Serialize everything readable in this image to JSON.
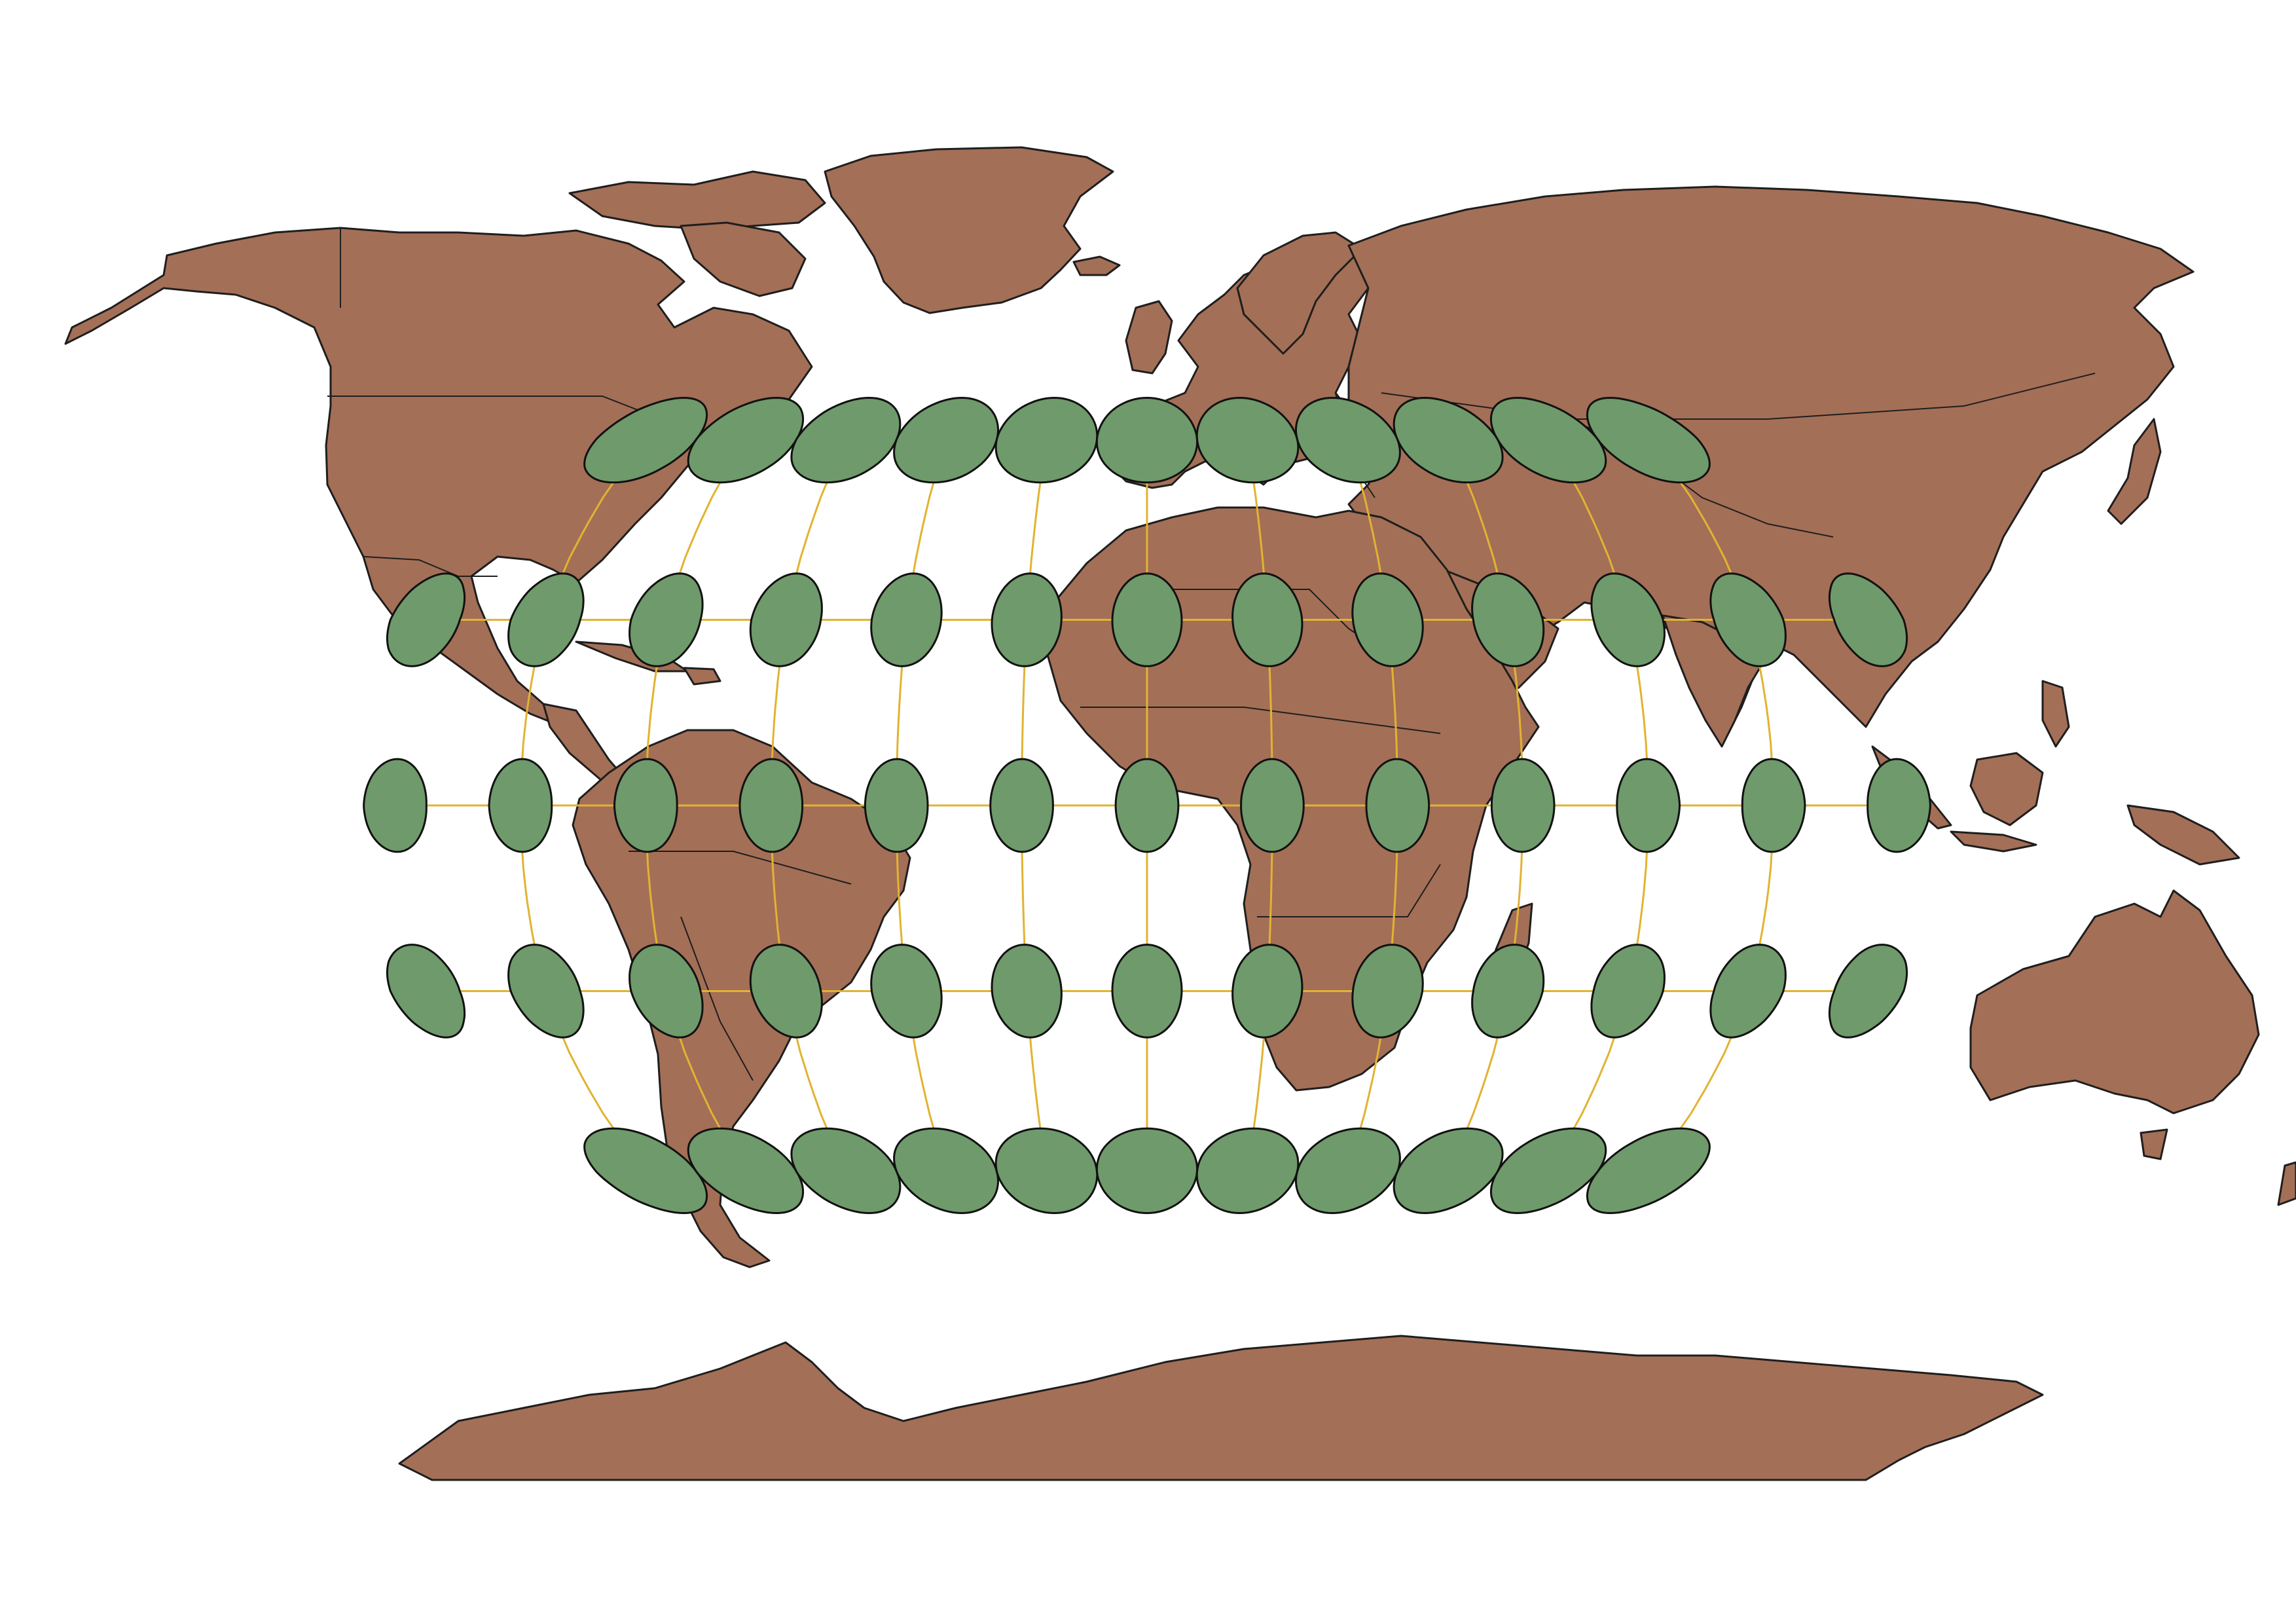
{
  "map": {
    "projection": "Robinson",
    "graticule": {
      "latitudes_deg": [
        -60,
        -30,
        0,
        30,
        60
      ],
      "longitudes_deg": [
        -180,
        -150,
        -120,
        -90,
        -60,
        -30,
        0,
        30,
        60,
        90,
        120,
        150,
        180
      ],
      "visible_meridians_deg": [
        -150,
        -120,
        -90,
        -60,
        -30,
        0,
        30,
        60,
        90,
        120,
        150
      ]
    },
    "indicatrix": {
      "latitudes_deg": [
        -60,
        -30,
        0,
        30,
        60
      ],
      "longitudes_deg": [
        -180,
        -150,
        -120,
        -90,
        -60,
        -30,
        0,
        30,
        60,
        90,
        120,
        150,
        180
      ],
      "circle_radius_deg": 7.5
    },
    "colors": {
      "land": "#a46f57",
      "land_outline": "#1e1e1e",
      "graticule": "#e1b331",
      "ellipse_fill": "#6f9a6b",
      "ellipse_outline": "#111111",
      "background": "#ffffff"
    }
  }
}
